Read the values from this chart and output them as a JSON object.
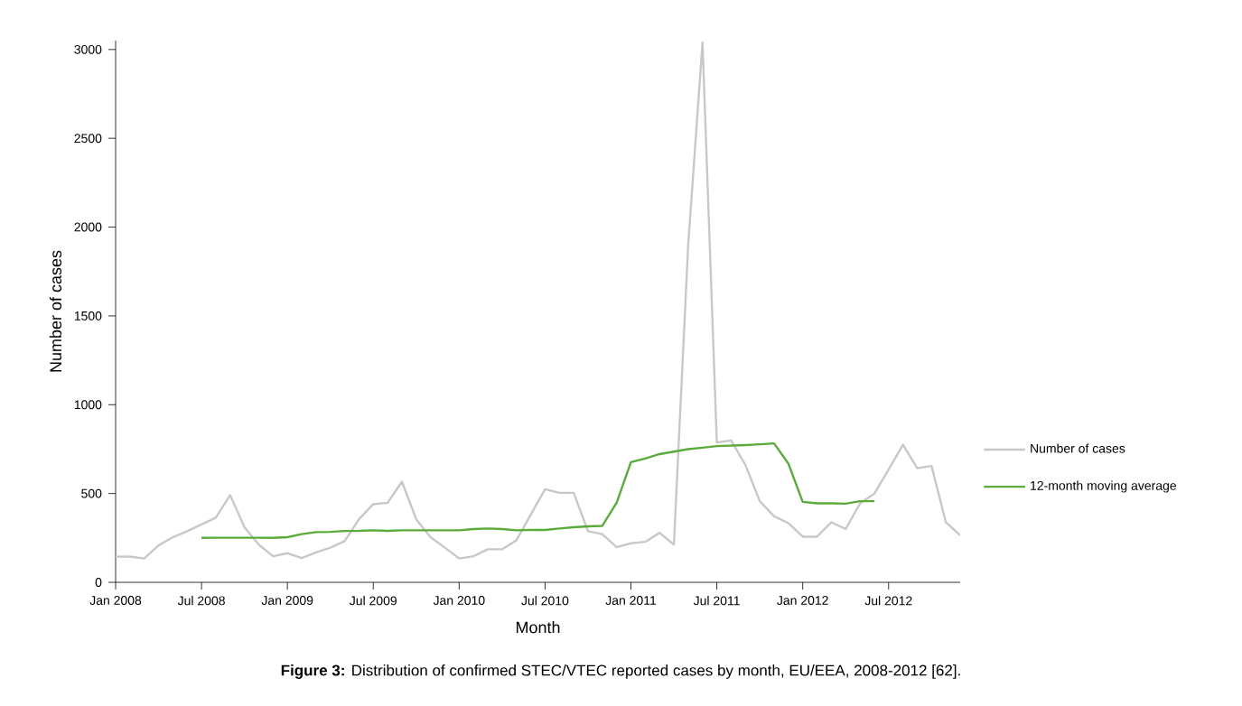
{
  "chart_data": {
    "type": "line",
    "xlabel": "Month",
    "ylabel": "Number of cases",
    "annotations": [
      "**Figure 3:** Distribution of confirmed STEC/VTEC reported cases by month, EU/EEA, 2008-2012 [62]."
    ],
    "xlim": [
      "2008-01",
      "2012-12"
    ],
    "ylim": [
      0,
      3050
    ],
    "xticks": [
      {
        "value": "2008-01",
        "label": "Jan 2008"
      },
      {
        "value": "2008-07",
        "label": "Jul 2008"
      },
      {
        "value": "2009-01",
        "label": "Jan 2009"
      },
      {
        "value": "2009-07",
        "label": "Jul 2009"
      },
      {
        "value": "2010-01",
        "label": "Jan 2010"
      },
      {
        "value": "2010-07",
        "label": "Jul 2010"
      },
      {
        "value": "2011-01",
        "label": "Jan 2011"
      },
      {
        "value": "2011-07",
        "label": "Jul 2011"
      },
      {
        "value": "2012-01",
        "label": "Jan 2012"
      },
      {
        "value": "2012-07",
        "label": "Jul 2012"
      }
    ],
    "yticks": [
      0,
      500,
      1000,
      1500,
      2000,
      2500,
      3000
    ],
    "legend": "right",
    "marker": "none",
    "line_style": "solid",
    "series": [
      {
        "name": "Number of cases",
        "color": "#c8c8c8",
        "x": [
          "2008-01",
          "2008-02",
          "2008-03",
          "2008-04",
          "2008-05",
          "2008-06",
          "2008-07",
          "2008-08",
          "2008-09",
          "2008-10",
          "2008-11",
          "2008-12",
          "2009-01",
          "2009-02",
          "2009-03",
          "2009-04",
          "2009-05",
          "2009-06",
          "2009-07",
          "2009-08",
          "2009-09",
          "2009-10",
          "2009-11",
          "2009-12",
          "2010-01",
          "2010-02",
          "2010-03",
          "2010-04",
          "2010-05",
          "2010-06",
          "2010-07",
          "2010-08",
          "2010-09",
          "2010-10",
          "2010-11",
          "2010-12",
          "2011-01",
          "2011-02",
          "2011-03",
          "2011-04",
          "2011-05",
          "2011-06",
          "2011-07",
          "2011-08",
          "2011-09",
          "2011-10",
          "2011-11",
          "2011-12",
          "2012-01",
          "2012-02",
          "2012-03",
          "2012-04",
          "2012-05",
          "2012-06",
          "2012-07",
          "2012-08",
          "2012-09",
          "2012-10",
          "2012-11",
          "2012-12"
        ],
        "values": [
          144,
          145,
          134,
          208,
          254,
          288,
          326,
          364,
          491,
          310,
          212,
          147,
          164,
          137,
          168,
          195,
          232,
          355,
          440,
          448,
          567,
          355,
          254,
          195,
          134,
          147,
          186,
          186,
          237,
          381,
          524,
          504,
          504,
          288,
          271,
          198,
          220,
          228,
          279,
          212,
          1900,
          3040,
          787,
          799,
          660,
          457,
          372,
          333,
          257,
          257,
          338,
          300,
          443,
          499,
          635,
          775,
          643,
          655,
          338,
          265
        ]
      },
      {
        "name": "12-month moving average",
        "color": "#5aab3a",
        "x": [
          "2008-07",
          "2008-08",
          "2008-09",
          "2008-10",
          "2008-11",
          "2008-12",
          "2009-01",
          "2009-02",
          "2009-03",
          "2009-04",
          "2009-05",
          "2009-06",
          "2009-07",
          "2009-08",
          "2009-09",
          "2009-10",
          "2009-11",
          "2009-12",
          "2010-01",
          "2010-02",
          "2010-03",
          "2010-04",
          "2010-05",
          "2010-06",
          "2010-07",
          "2010-08",
          "2010-09",
          "2010-10",
          "2010-11",
          "2010-12",
          "2011-01",
          "2011-02",
          "2011-03",
          "2011-04",
          "2011-05",
          "2011-06",
          "2011-07",
          "2011-08",
          "2011-09",
          "2011-10",
          "2011-11",
          "2011-12",
          "2012-01",
          "2012-02",
          "2012-03",
          "2012-04",
          "2012-05",
          "2012-06"
        ],
        "values": [
          250,
          251,
          251,
          251,
          251,
          250,
          254,
          271,
          283,
          284,
          289,
          290,
          293,
          290,
          293,
          293,
          293,
          293,
          293,
          300,
          303,
          300,
          293,
          295,
          295,
          303,
          310,
          315,
          318,
          448,
          677,
          697,
          722,
          736,
          750,
          758,
          767,
          770,
          773,
          777,
          782,
          668,
          453,
          445,
          445,
          443,
          457,
          457
        ]
      }
    ]
  }
}
